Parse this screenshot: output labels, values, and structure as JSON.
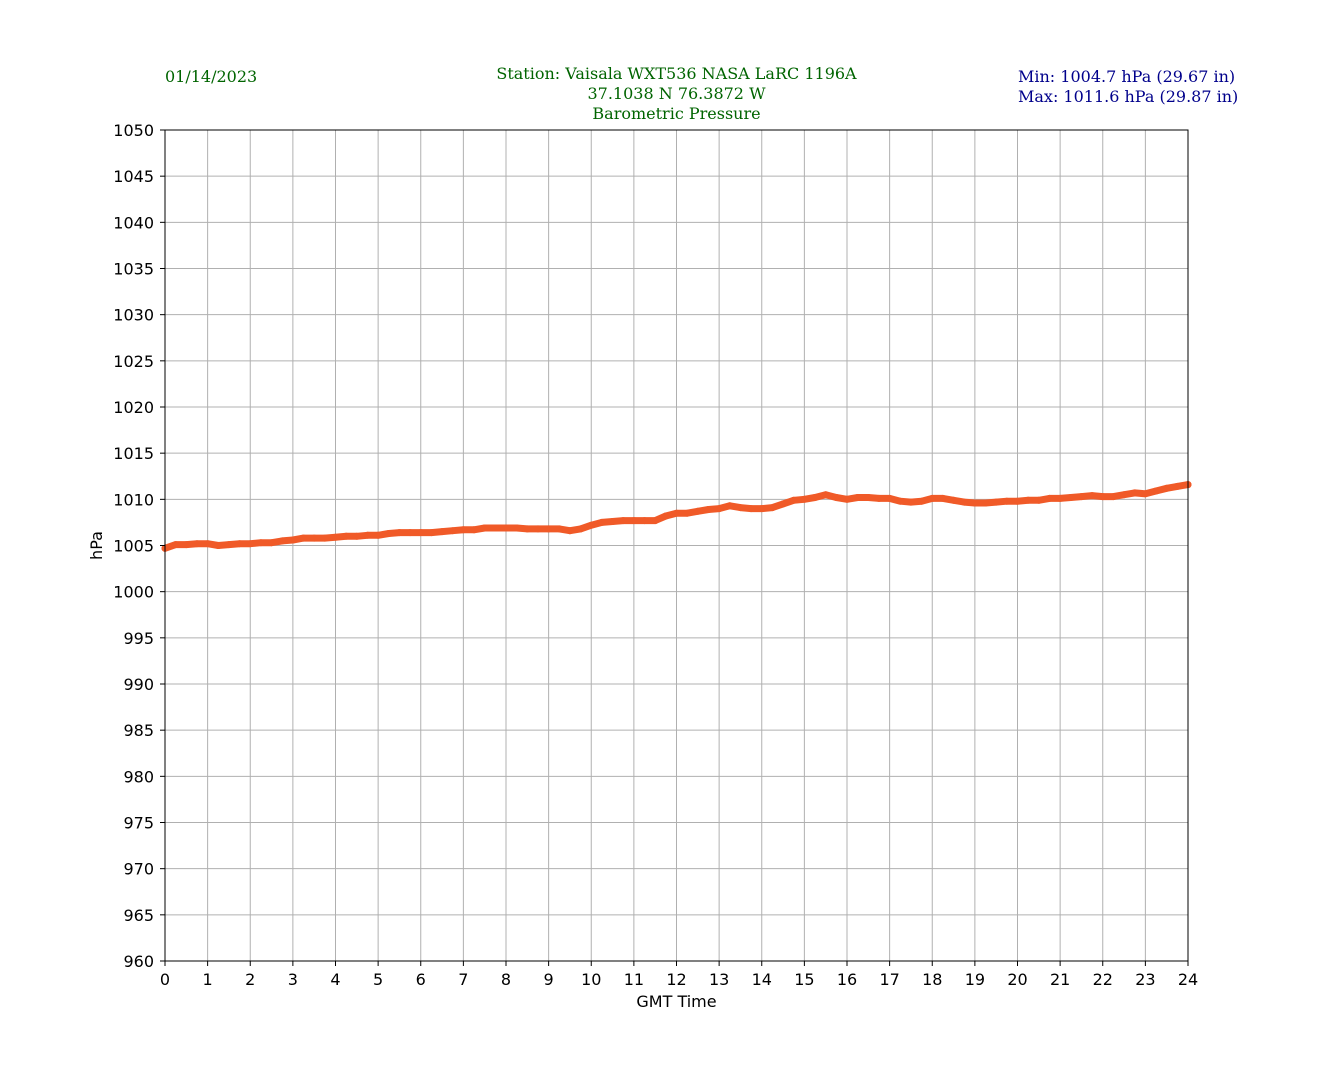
{
  "header": {
    "date": "01/14/2023",
    "station_line": "Station:  Vaisala WXT536  NASA LaRC 1196A",
    "coords_line": "37.1038 N 76.3872 W",
    "title_line": "Barometric Pressure",
    "min_line": "Min: 1004.7 hPa (29.67 in)",
    "max_line": "Max: 1011.6 hPa (29.87 in)"
  },
  "colors": {
    "series": "#f05a28",
    "grid": "#b0b0b0",
    "header_green": "#006400",
    "header_navy": "#00008b"
  },
  "chart_data": {
    "type": "line",
    "title": "Barometric Pressure",
    "xlabel": "GMT Time",
    "ylabel": "hPa",
    "xlim": [
      0,
      24
    ],
    "ylim": [
      960,
      1050
    ],
    "grid": true,
    "x_ticks": [
      0,
      1,
      2,
      3,
      4,
      5,
      6,
      7,
      8,
      9,
      10,
      11,
      12,
      13,
      14,
      15,
      16,
      17,
      18,
      19,
      20,
      21,
      22,
      23,
      24
    ],
    "y_ticks": [
      960,
      965,
      970,
      975,
      980,
      985,
      990,
      995,
      1000,
      1005,
      1010,
      1015,
      1020,
      1025,
      1030,
      1035,
      1040,
      1045,
      1050
    ],
    "series": [
      {
        "x": [
          0,
          0.25,
          0.5,
          0.75,
          1,
          1.25,
          1.5,
          1.75,
          2,
          2.25,
          2.5,
          2.75,
          3,
          3.25,
          3.5,
          3.75,
          4,
          4.25,
          4.5,
          4.75,
          5,
          5.25,
          5.5,
          5.75,
          6,
          6.25,
          6.5,
          6.75,
          7,
          7.25,
          7.5,
          7.75,
          8,
          8.25,
          8.5,
          8.75,
          9,
          9.25,
          9.5,
          9.75,
          10,
          10.25,
          10.5,
          10.75,
          11,
          11.25,
          11.5,
          11.75,
          12,
          12.25,
          12.5,
          12.75,
          13,
          13.25,
          13.5,
          13.75,
          14,
          14.25,
          14.5,
          14.75,
          15,
          15.25,
          15.5,
          15.75,
          16,
          16.25,
          16.5,
          16.75,
          17,
          17.25,
          17.5,
          17.75,
          18,
          18.25,
          18.5,
          18.75,
          19,
          19.25,
          19.5,
          19.75,
          20,
          20.25,
          20.5,
          20.75,
          21,
          21.25,
          21.5,
          21.75,
          22,
          22.25,
          22.5,
          22.75,
          23,
          23.25,
          23.5,
          23.75,
          24
        ],
        "y": [
          1004.7,
          1005.1,
          1005.1,
          1005.2,
          1005.2,
          1005.0,
          1005.1,
          1005.2,
          1005.2,
          1005.3,
          1005.3,
          1005.5,
          1005.6,
          1005.8,
          1005.8,
          1005.8,
          1005.9,
          1006.0,
          1006.0,
          1006.1,
          1006.1,
          1006.3,
          1006.4,
          1006.4,
          1006.4,
          1006.4,
          1006.5,
          1006.6,
          1006.7,
          1006.7,
          1006.9,
          1006.9,
          1006.9,
          1006.9,
          1006.8,
          1006.8,
          1006.8,
          1006.8,
          1006.6,
          1006.8,
          1007.2,
          1007.5,
          1007.6,
          1007.7,
          1007.7,
          1007.7,
          1007.7,
          1008.2,
          1008.5,
          1008.5,
          1008.7,
          1008.9,
          1009.0,
          1009.3,
          1009.1,
          1009.0,
          1009.0,
          1009.1,
          1009.5,
          1009.9,
          1010.0,
          1010.2,
          1010.5,
          1010.2,
          1010.0,
          1010.2,
          1010.2,
          1010.1,
          1010.1,
          1009.8,
          1009.7,
          1009.8,
          1010.1,
          1010.1,
          1009.9,
          1009.7,
          1009.6,
          1009.6,
          1009.7,
          1009.8,
          1009.8,
          1009.9,
          1009.9,
          1010.1,
          1010.1,
          1010.2,
          1010.3,
          1010.4,
          1010.3,
          1010.3,
          1010.5,
          1010.7,
          1010.6,
          1010.9,
          1011.2,
          1011.4,
          1011.6
        ]
      }
    ]
  }
}
